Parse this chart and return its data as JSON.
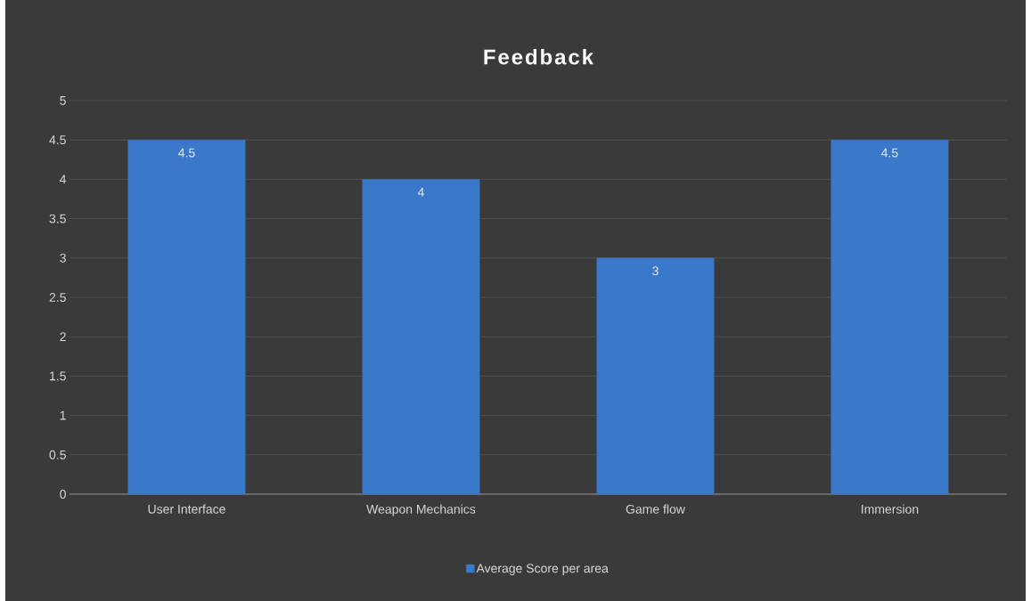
{
  "chart_data": {
    "type": "bar",
    "title": "Feedback",
    "categories": [
      "User Interface",
      "Weapon Mechanics",
      "Game flow",
      "Immersion"
    ],
    "series": [
      {
        "name": "Average Score per area",
        "color": "#3a78c9",
        "values": [
          4.5,
          4,
          3,
          4.5
        ]
      }
    ],
    "ylim": [
      0,
      5
    ],
    "yticks": [
      0,
      0.5,
      1,
      1.5,
      2,
      2.5,
      3,
      3.5,
      4,
      4.5,
      5
    ],
    "grid": "y",
    "legend": "bottom",
    "data_labels": true
  }
}
